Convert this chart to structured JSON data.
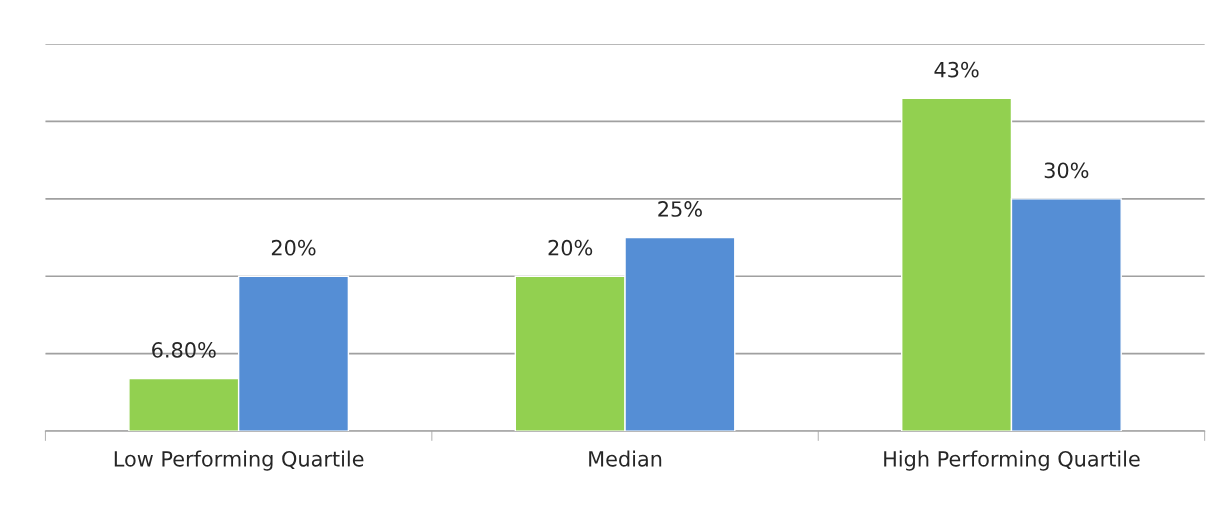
{
  "chart_data": {
    "type": "bar",
    "categories": [
      "Low Performing Quartile",
      "Median",
      "High Performing Quartile"
    ],
    "series": [
      {
        "color": "#92d050",
        "values": [
          6.8,
          20,
          43
        ],
        "value_labels": [
          "6.80%",
          "20%",
          "43%"
        ]
      },
      {
        "color": "#558ed5",
        "values": [
          20,
          25,
          30
        ],
        "value_labels": [
          "20%",
          "25%",
          "30%"
        ]
      }
    ],
    "ylim": [
      0,
      50
    ],
    "yticks": [
      {
        "value": 0,
        "label": null
      },
      {
        "value": 10,
        "label": null
      },
      {
        "value": 20,
        "label": null
      },
      {
        "value": 30,
        "label": null
      },
      {
        "value": 40,
        "label": null
      },
      {
        "value": 50,
        "label": null
      }
    ],
    "grid": "y"
  }
}
